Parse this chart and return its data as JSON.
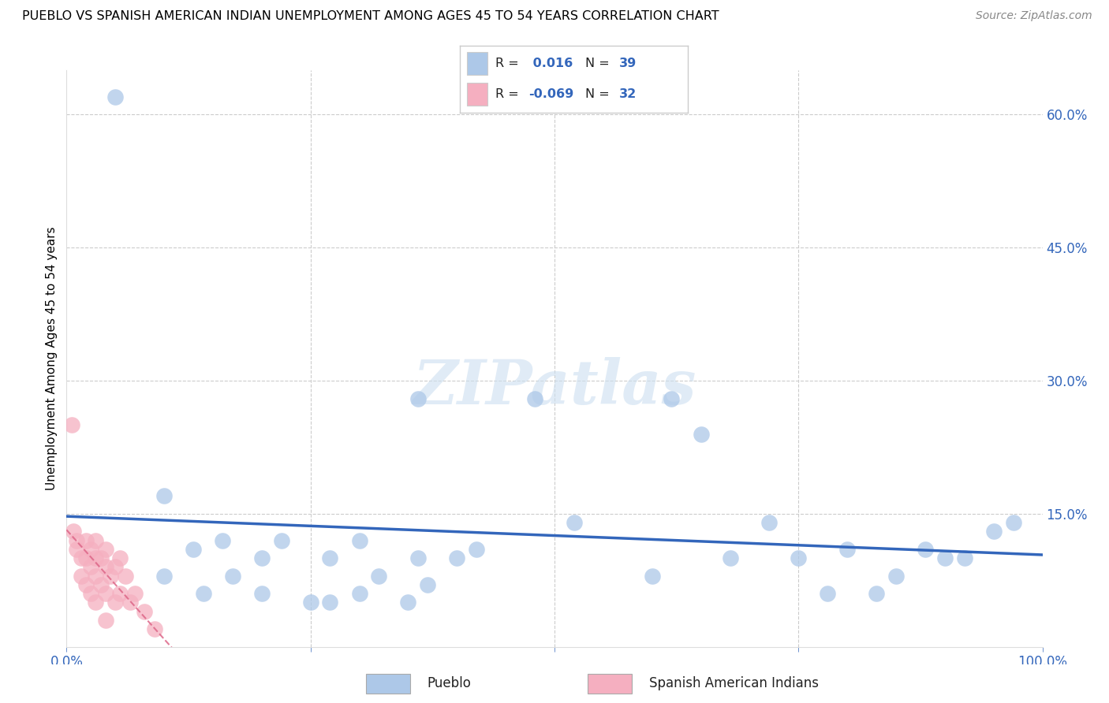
{
  "title": "PUEBLO VS SPANISH AMERICAN INDIAN UNEMPLOYMENT AMONG AGES 45 TO 54 YEARS CORRELATION CHART",
  "source": "Source: ZipAtlas.com",
  "ylabel": "Unemployment Among Ages 45 to 54 years",
  "xlim": [
    0.0,
    1.0
  ],
  "ylim": [
    0.0,
    0.65
  ],
  "xticks": [
    0.0,
    0.25,
    0.5,
    0.75,
    1.0
  ],
  "xticklabels": [
    "0.0%",
    "",
    "",
    "",
    "100.0%"
  ],
  "ytick_positions": [
    0.15,
    0.3,
    0.45,
    0.6
  ],
  "ytick_labels": [
    "15.0%",
    "30.0%",
    "45.0%",
    "60.0%"
  ],
  "pueblo_R": 0.016,
  "pueblo_N": 39,
  "sai_R": -0.069,
  "sai_N": 32,
  "pueblo_color": "#adc8e8",
  "pueblo_line_color": "#3366bb",
  "sai_color": "#f5afc0",
  "sai_line_color": "#dd6688",
  "pueblo_x": [
    0.05,
    0.1,
    0.1,
    0.13,
    0.14,
    0.16,
    0.17,
    0.2,
    0.2,
    0.22,
    0.25,
    0.27,
    0.27,
    0.3,
    0.3,
    0.32,
    0.35,
    0.36,
    0.36,
    0.37,
    0.4,
    0.42,
    0.48,
    0.52,
    0.6,
    0.62,
    0.65,
    0.68,
    0.72,
    0.75,
    0.78,
    0.8,
    0.83,
    0.85,
    0.88,
    0.9,
    0.92,
    0.95,
    0.97
  ],
  "pueblo_y": [
    0.62,
    0.17,
    0.08,
    0.11,
    0.06,
    0.12,
    0.08,
    0.1,
    0.06,
    0.12,
    0.05,
    0.05,
    0.1,
    0.06,
    0.12,
    0.08,
    0.05,
    0.28,
    0.1,
    0.07,
    0.1,
    0.11,
    0.28,
    0.14,
    0.08,
    0.28,
    0.24,
    0.1,
    0.14,
    0.1,
    0.06,
    0.11,
    0.06,
    0.08,
    0.11,
    0.1,
    0.1,
    0.13,
    0.14
  ],
  "sai_x": [
    0.005,
    0.007,
    0.01,
    0.01,
    0.015,
    0.015,
    0.02,
    0.02,
    0.02,
    0.025,
    0.025,
    0.025,
    0.03,
    0.03,
    0.03,
    0.03,
    0.035,
    0.035,
    0.04,
    0.04,
    0.04,
    0.04,
    0.045,
    0.05,
    0.05,
    0.055,
    0.055,
    0.06,
    0.065,
    0.07,
    0.08,
    0.09
  ],
  "sai_y": [
    0.25,
    0.13,
    0.12,
    0.11,
    0.1,
    0.08,
    0.12,
    0.1,
    0.07,
    0.11,
    0.09,
    0.06,
    0.12,
    0.1,
    0.08,
    0.05,
    0.1,
    0.07,
    0.11,
    0.09,
    0.06,
    0.03,
    0.08,
    0.09,
    0.05,
    0.1,
    0.06,
    0.08,
    0.05,
    0.06,
    0.04,
    0.02
  ]
}
